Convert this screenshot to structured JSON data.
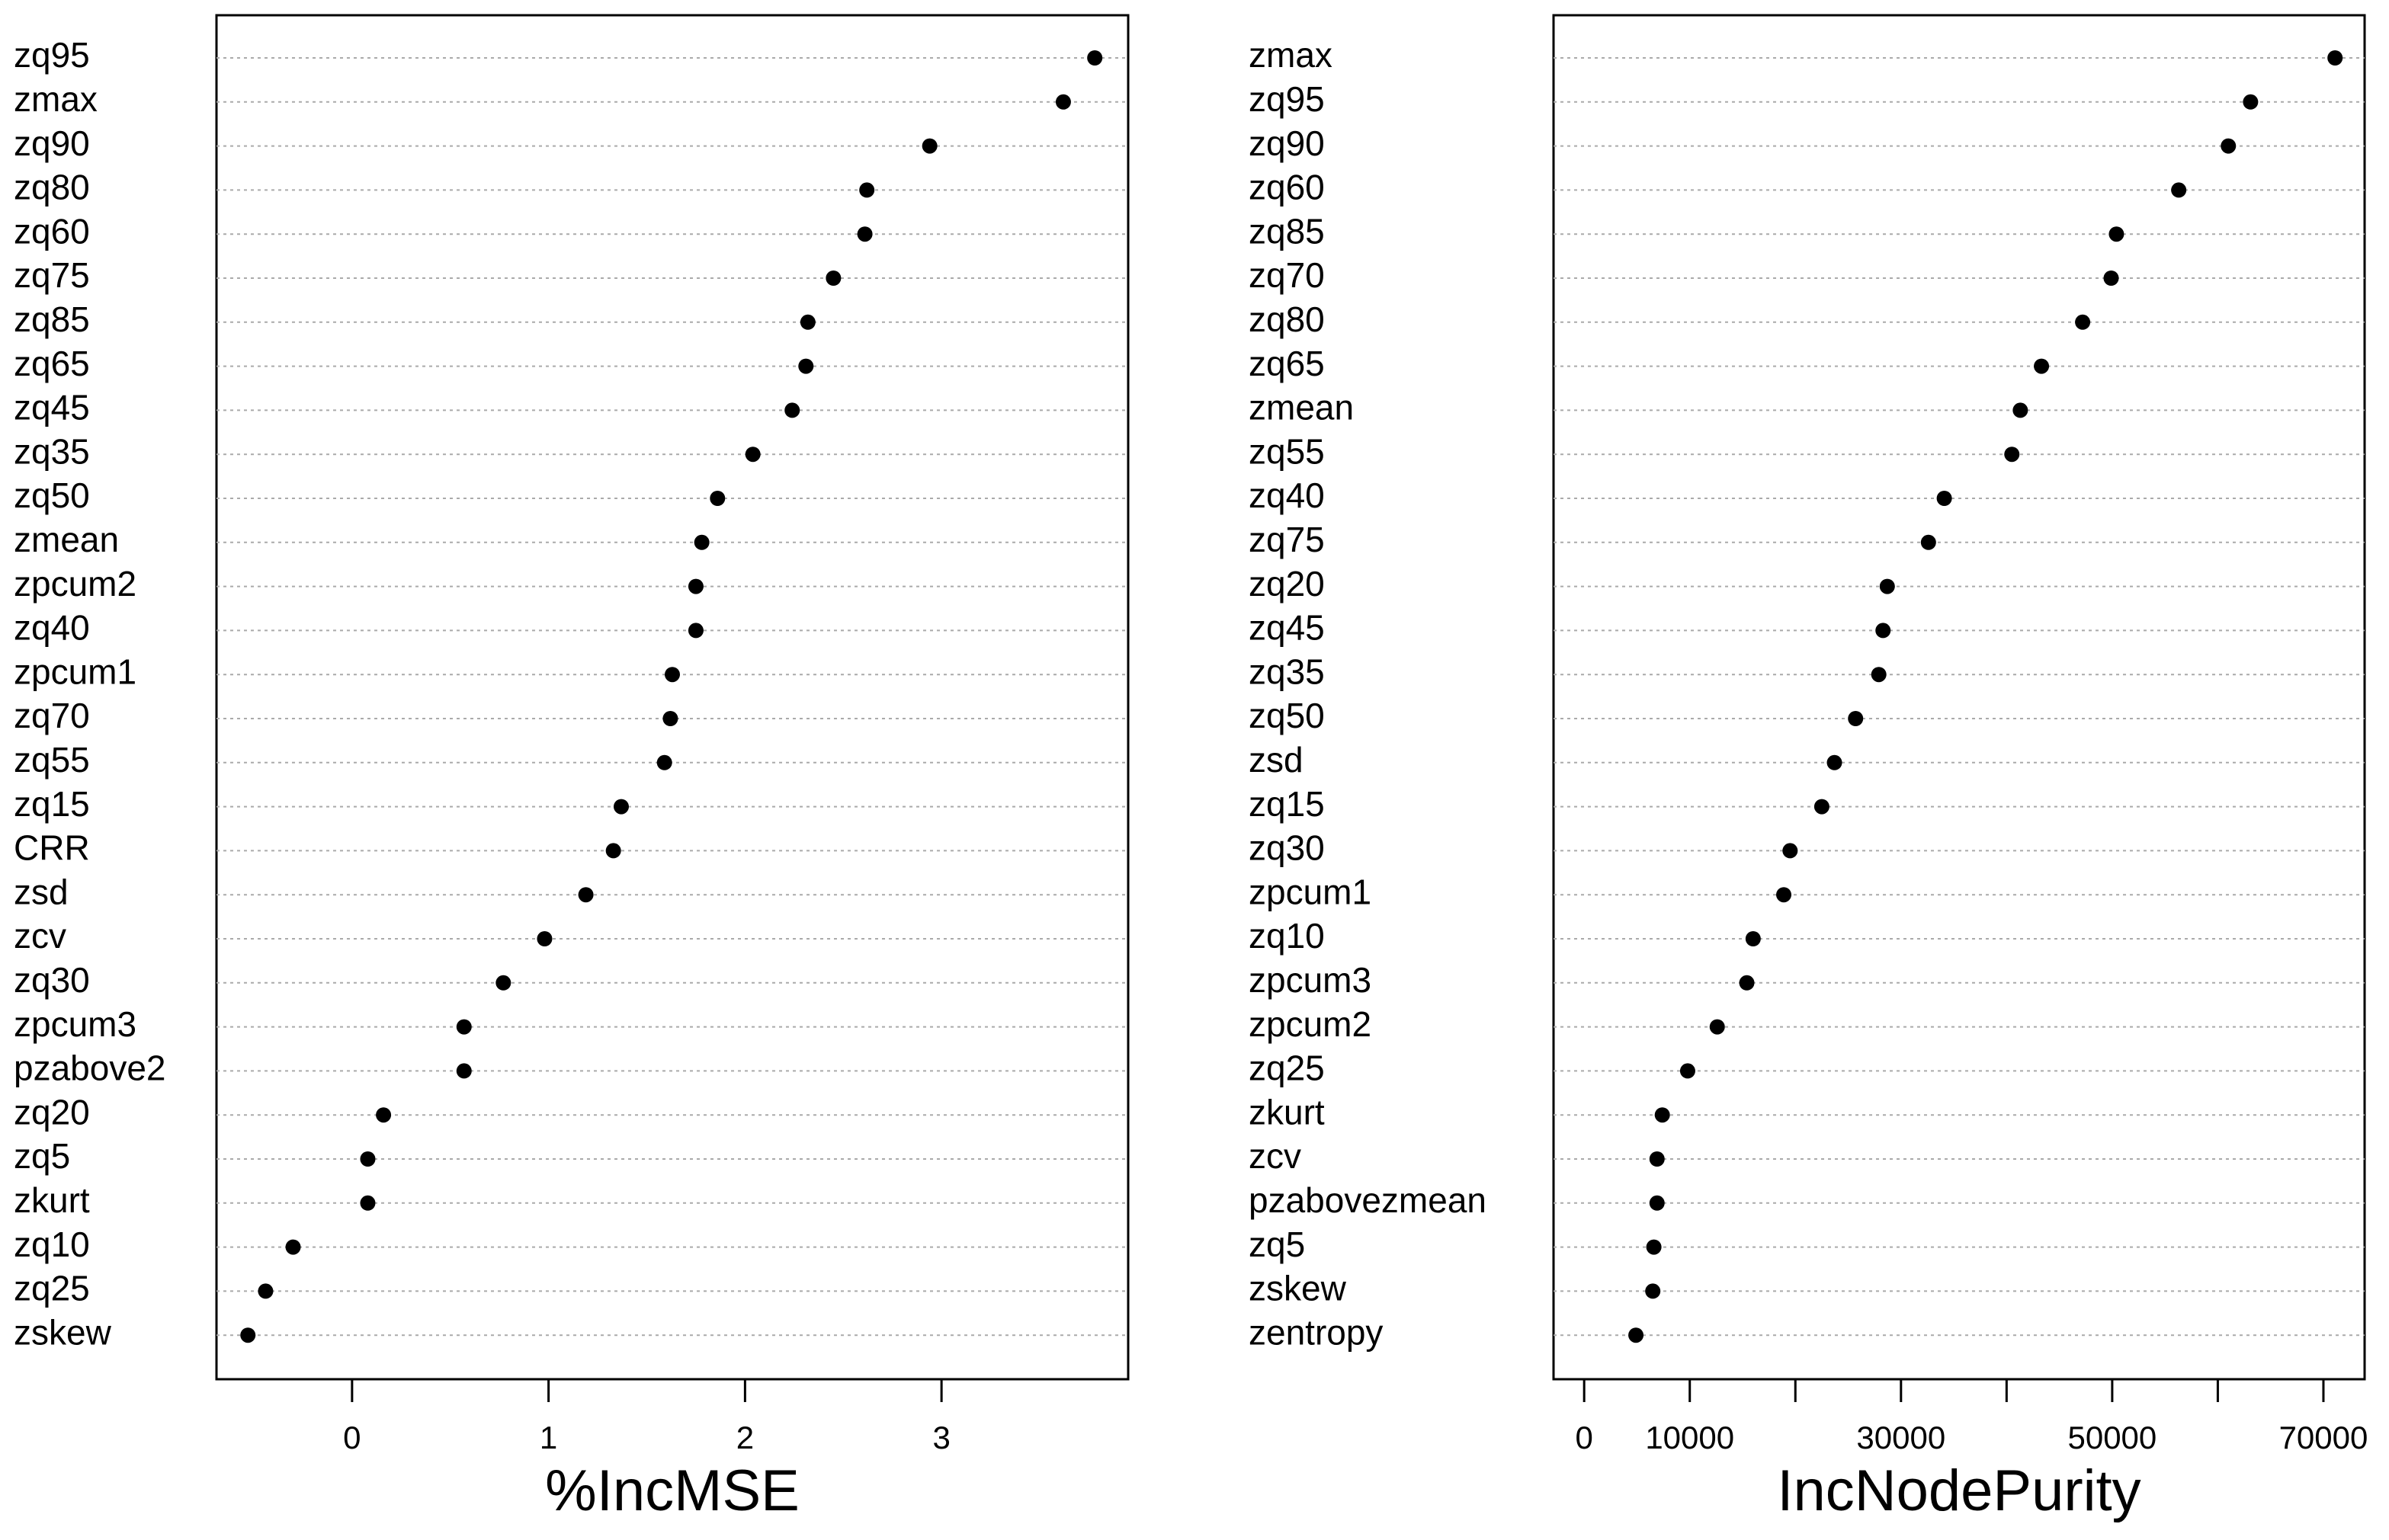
{
  "chart_data": [
    {
      "type": "dot",
      "xlabel": "%IncMSE",
      "color": "#000000",
      "grid": true,
      "categories": [
        "zq95",
        "zmax",
        "zq90",
        "zq80",
        "zq60",
        "zq75",
        "zq85",
        "zq65",
        "zq45",
        "zq35",
        "zq50",
        "zmean",
        "zpcum2",
        "zq40",
        "zpcum1",
        "zq70",
        "zq55",
        "zq15",
        "CRR",
        "zsd",
        "zcv",
        "zq30",
        "zpcum3",
        "pzabove2",
        "zq20",
        "zq5",
        "zkurt",
        "zq10",
        "zq25",
        "zskew"
      ],
      "values": [
        3.78,
        3.62,
        2.94,
        2.62,
        2.61,
        2.45,
        2.32,
        2.31,
        2.24,
        2.04,
        1.86,
        1.78,
        1.75,
        1.75,
        1.63,
        1.62,
        1.59,
        1.37,
        1.33,
        1.19,
        0.98,
        0.77,
        0.57,
        0.57,
        0.16,
        0.08,
        0.08,
        -0.3,
        -0.44,
        -0.53
      ],
      "xlim": [
        -0.69,
        3.95
      ],
      "xticks": [
        0,
        1,
        2,
        3
      ]
    },
    {
      "type": "dot",
      "xlabel": "IncNodePurity",
      "color": "#000000",
      "grid": true,
      "categories": [
        "zmax",
        "zq95",
        "zq90",
        "zq60",
        "zq85",
        "zq70",
        "zq80",
        "zq65",
        "zmean",
        "zq55",
        "zq40",
        "zq75",
        "zq20",
        "zq45",
        "zq35",
        "zq50",
        "zsd",
        "zq15",
        "zq30",
        "zpcum1",
        "zq10",
        "zpcum3",
        "zpcum2",
        "zq25",
        "zkurt",
        "zcv",
        "pzabovezmean",
        "zq5",
        "zskew",
        "zentropy"
      ],
      "values": [
        71100,
        63100,
        61000,
        56300,
        50400,
        49900,
        47200,
        43300,
        41300,
        40500,
        34100,
        32600,
        28700,
        28300,
        27900,
        25700,
        23700,
        22500,
        19500,
        18900,
        16000,
        15400,
        12600,
        9800,
        7400,
        6900,
        6900,
        6600,
        6500,
        4900
      ],
      "xlim": [
        -2900,
        73900
      ],
      "xticks": [
        0,
        10000,
        30000,
        50000,
        70000
      ],
      "xticks_minor": [
        20000,
        40000,
        60000
      ]
    }
  ]
}
